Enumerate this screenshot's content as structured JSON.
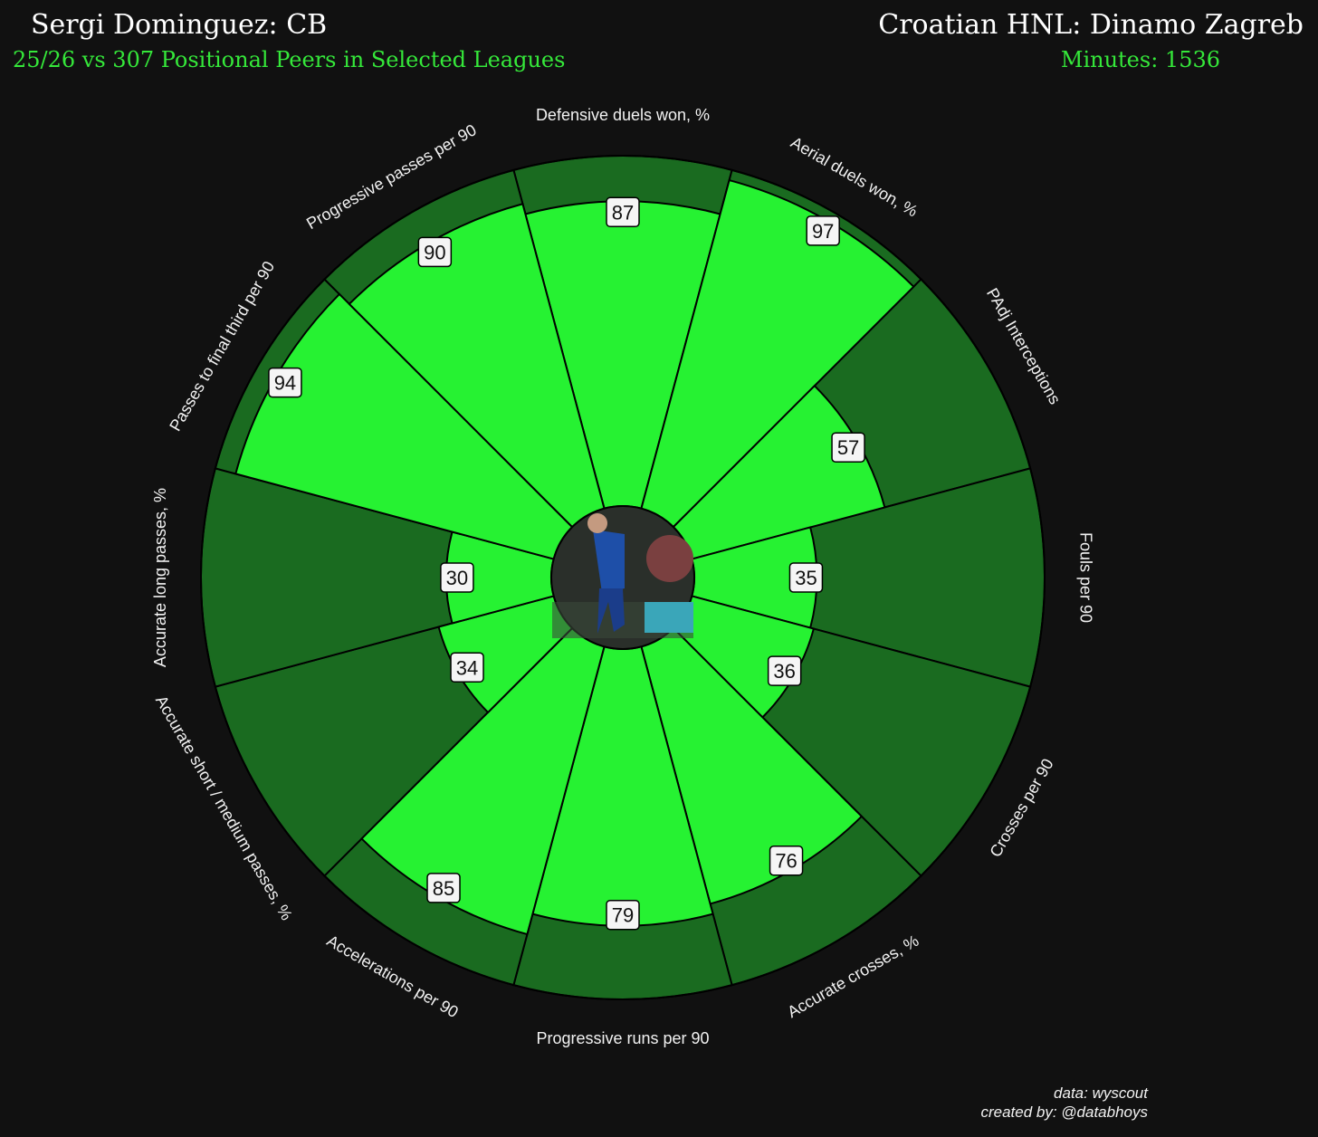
{
  "header": {
    "player_title": "Sergi Dominguez: CB",
    "peer_subtitle": "25/26 vs 307 Positional Peers in Selected Leagues",
    "team_title": "Croatian HNL: Dinamo Zagreb",
    "minutes": "Minutes: 1536"
  },
  "footer": {
    "data_credit": "data: wyscout",
    "author_credit": "created by: @databhoys"
  },
  "colors": {
    "background": "#111111",
    "slice_fill": "#26f232",
    "slice_background": "#1a6b20",
    "accent_text": "#35e83a"
  },
  "chart_data": {
    "type": "pizza",
    "range": [
      0,
      100
    ],
    "metrics": [
      {
        "label": "Defensive duels won, %",
        "value": 87
      },
      {
        "label": "Aerial duels won, %",
        "value": 97
      },
      {
        "label": "PAdj Interceptions",
        "value": 57
      },
      {
        "label": "Fouls per 90",
        "value": 35
      },
      {
        "label": "Crosses per 90",
        "value": 36
      },
      {
        "label": "Accurate crosses, %",
        "value": 76
      },
      {
        "label": "Progressive runs per 90",
        "value": 79
      },
      {
        "label": "Accelerations per 90",
        "value": 85
      },
      {
        "label": "Accurate short / medium passes, %",
        "value": 34
      },
      {
        "label": "Accurate long passes, %",
        "value": 30
      },
      {
        "label": "Passes to final third per 90",
        "value": 94
      },
      {
        "label": "Progressive passes per 90",
        "value": 90
      }
    ]
  }
}
